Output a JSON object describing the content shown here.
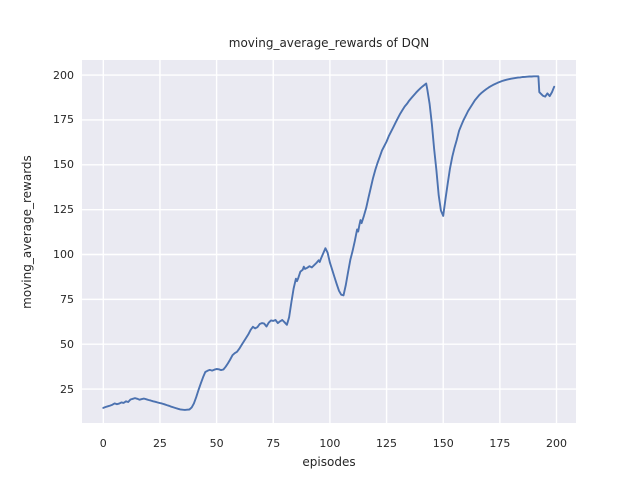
{
  "chart_data": {
    "type": "line",
    "title": "moving_average_rewards of DQN",
    "xlabel": "episodes",
    "ylabel": "moving_average_rewards",
    "x_ticks": [
      0,
      25,
      50,
      75,
      100,
      125,
      150,
      175,
      200
    ],
    "y_ticks": [
      25,
      50,
      75,
      100,
      125,
      150,
      175,
      200
    ],
    "xlim": [
      -9.4,
      208.6
    ],
    "ylim": [
      6.1,
      208.4
    ],
    "grid": true,
    "legend_position": "none",
    "line_color": "#4c72b0",
    "plot_background_color": "#eaeaf2",
    "grid_color": "#ffffff",
    "text_color": "#262626",
    "series": [
      {
        "name": "DQN moving average rewards",
        "points": [
          [
            0,
            14.5
          ],
          [
            1,
            15
          ],
          [
            2,
            15.4
          ],
          [
            3,
            15.8
          ],
          [
            4,
            16.3
          ],
          [
            5,
            17
          ],
          [
            6,
            16.6
          ],
          [
            7,
            16.9
          ],
          [
            8,
            17.6
          ],
          [
            9,
            17.3
          ],
          [
            10,
            18.2
          ],
          [
            11,
            17.8
          ],
          [
            12,
            19.2
          ],
          [
            13,
            19.6
          ],
          [
            14,
            20
          ],
          [
            15,
            19.6
          ],
          [
            16,
            19.1
          ],
          [
            17,
            19.4
          ],
          [
            18,
            19.7
          ],
          [
            19,
            19.3
          ],
          [
            20,
            18.9
          ],
          [
            21,
            18.6
          ],
          [
            22,
            18.2
          ],
          [
            23,
            17.9
          ],
          [
            24,
            17.5
          ],
          [
            25,
            17.2
          ],
          [
            26,
            16.9
          ],
          [
            27,
            16.5
          ],
          [
            28,
            16.1
          ],
          [
            29,
            15.7
          ],
          [
            30,
            15.2
          ],
          [
            31,
            14.8
          ],
          [
            32,
            14.4
          ],
          [
            33,
            14
          ],
          [
            34,
            13.7
          ],
          [
            35,
            13.5
          ],
          [
            36,
            13.4
          ],
          [
            37,
            13.5
          ],
          [
            38,
            13.6
          ],
          [
            39,
            14.8
          ],
          [
            40,
            17
          ],
          [
            41,
            20.5
          ],
          [
            42,
            24.5
          ],
          [
            43,
            28
          ],
          [
            44,
            31.5
          ],
          [
            45,
            34.5
          ],
          [
            46,
            35.2
          ],
          [
            47,
            35.7
          ],
          [
            48,
            35.3
          ],
          [
            49,
            35.8
          ],
          [
            50,
            36.2
          ],
          [
            51,
            36
          ],
          [
            52,
            35.6
          ],
          [
            53,
            35.9
          ],
          [
            54,
            37.5
          ],
          [
            55,
            39.3
          ],
          [
            56,
            41.5
          ],
          [
            57,
            43.9
          ],
          [
            58,
            45
          ],
          [
            59,
            45.8
          ],
          [
            60,
            47.5
          ],
          [
            61,
            49.5
          ],
          [
            62,
            51.5
          ],
          [
            63,
            53.5
          ],
          [
            64,
            55.5
          ],
          [
            65,
            58
          ],
          [
            66,
            59.7
          ],
          [
            67,
            58.8
          ],
          [
            68,
            59.5
          ],
          [
            69,
            61.3
          ],
          [
            70,
            61.8
          ],
          [
            71,
            61.5
          ],
          [
            72,
            59.9
          ],
          [
            73,
            62
          ],
          [
            74,
            63.3
          ],
          [
            75,
            63
          ],
          [
            76,
            63.5
          ],
          [
            77,
            61.8
          ],
          [
            78,
            62.8
          ],
          [
            79,
            63.5
          ],
          [
            80,
            62.2
          ],
          [
            81,
            60.8
          ],
          [
            82,
            65
          ],
          [
            83,
            73.5
          ],
          [
            84,
            81
          ],
          [
            85,
            86.5
          ],
          [
            85.5,
            85.2
          ],
          [
            86,
            86.8
          ],
          [
            87,
            90.5
          ],
          [
            88,
            91.5
          ],
          [
            88.5,
            93.2
          ],
          [
            89,
            92
          ],
          [
            90,
            92.6
          ],
          [
            91,
            93.5
          ],
          [
            92,
            92.8
          ],
          [
            93,
            94
          ],
          [
            94,
            95.2
          ],
          [
            95,
            96.8
          ],
          [
            95.5,
            95.8
          ],
          [
            96,
            97.5
          ],
          [
            97,
            100.5
          ],
          [
            98,
            103.5
          ],
          [
            99,
            101
          ],
          [
            100,
            95.5
          ],
          [
            101,
            91.5
          ],
          [
            102,
            87.5
          ],
          [
            103,
            83.5
          ],
          [
            104,
            79.8
          ],
          [
            105,
            77.6
          ],
          [
            106,
            77.2
          ],
          [
            107,
            83
          ],
          [
            108,
            90
          ],
          [
            109,
            97
          ],
          [
            110,
            102
          ],
          [
            111,
            107.5
          ],
          [
            112,
            114
          ],
          [
            112.5,
            112.8
          ],
          [
            113,
            116.5
          ],
          [
            113.5,
            119.2
          ],
          [
            114,
            117.5
          ],
          [
            115,
            121.5
          ],
          [
            116,
            126
          ],
          [
            117,
            131.5
          ],
          [
            118,
            137
          ],
          [
            119,
            142.5
          ],
          [
            120,
            147
          ],
          [
            121,
            151
          ],
          [
            122,
            154.5
          ],
          [
            123,
            158
          ],
          [
            124,
            160.5
          ],
          [
            125,
            163
          ],
          [
            126,
            166
          ],
          [
            127,
            168.5
          ],
          [
            128,
            171
          ],
          [
            129,
            173.5
          ],
          [
            130,
            176
          ],
          [
            131,
            178.5
          ],
          [
            132,
            180.5
          ],
          [
            133,
            182.5
          ],
          [
            134,
            184
          ],
          [
            135,
            185.8
          ],
          [
            136,
            187.3
          ],
          [
            137,
            188.8
          ],
          [
            138,
            190.2
          ],
          [
            139,
            191.5
          ],
          [
            140,
            192.7
          ],
          [
            141,
            193.8
          ],
          [
            142,
            194.8
          ],
          [
            142.5,
            195.3
          ],
          [
            143,
            192
          ],
          [
            144,
            184
          ],
          [
            145,
            172.5
          ],
          [
            146,
            159
          ],
          [
            147,
            147
          ],
          [
            148,
            133
          ],
          [
            149,
            124.5
          ],
          [
            150,
            121.5
          ],
          [
            151,
            131
          ],
          [
            152,
            139.5
          ],
          [
            153,
            148
          ],
          [
            154,
            154.5
          ],
          [
            155,
            159.5
          ],
          [
            156,
            164
          ],
          [
            157,
            169
          ],
          [
            158,
            172
          ],
          [
            159,
            175
          ],
          [
            160,
            177.5
          ],
          [
            161,
            180
          ],
          [
            162,
            182
          ],
          [
            163,
            184
          ],
          [
            164,
            186
          ],
          [
            165,
            187.5
          ],
          [
            166,
            189
          ],
          [
            167,
            190.2
          ],
          [
            168,
            191.2
          ],
          [
            169,
            192.2
          ],
          [
            170,
            193
          ],
          [
            171,
            193.8
          ],
          [
            172,
            194.5
          ],
          [
            173,
            195.1
          ],
          [
            174,
            195.7
          ],
          [
            175,
            196.2
          ],
          [
            176,
            196.7
          ],
          [
            177,
            197.1
          ],
          [
            178,
            197.4
          ],
          [
            179,
            197.7
          ],
          [
            180,
            198
          ],
          [
            181,
            198.2
          ],
          [
            182,
            198.4
          ],
          [
            183,
            198.6
          ],
          [
            184,
            198.7
          ],
          [
            185,
            198.9
          ],
          [
            186,
            199
          ],
          [
            187,
            199.1
          ],
          [
            188,
            199.2
          ],
          [
            189,
            199.2
          ],
          [
            190,
            199.3
          ],
          [
            191,
            199.3
          ],
          [
            192,
            199.3
          ],
          [
            192.4,
            190.5
          ],
          [
            193,
            189.8
          ],
          [
            194,
            188.5
          ],
          [
            195,
            188
          ],
          [
            196,
            189.8
          ],
          [
            197,
            188.3
          ],
          [
            198,
            190.5
          ],
          [
            199,
            193.5
          ]
        ]
      }
    ]
  }
}
